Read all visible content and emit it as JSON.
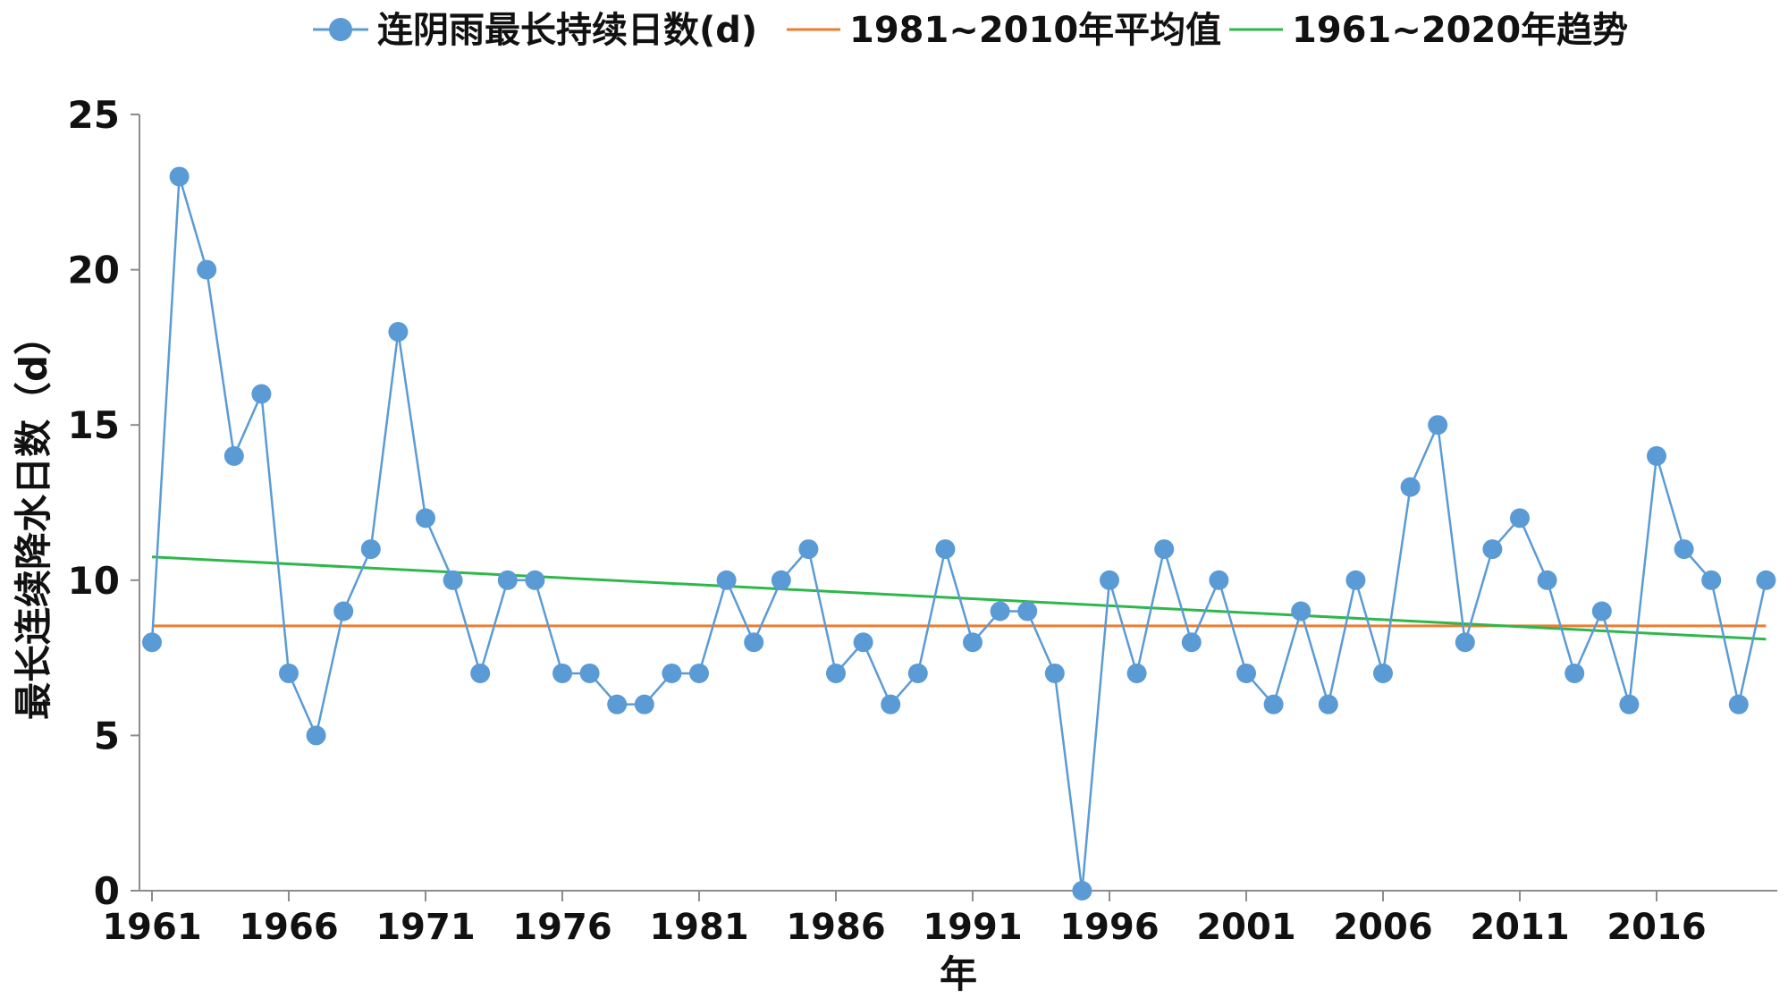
{
  "chart_data": {
    "type": "line",
    "title": "",
    "xlabel": "年",
    "ylabel": "最长连续降水日数（d）",
    "ylim": [
      0,
      25
    ],
    "yticks": [
      "0",
      "5",
      "10",
      "15",
      "20",
      "25"
    ],
    "xtick_labels": [
      "1961",
      "1966",
      "1971",
      "1976",
      "1981",
      "1986",
      "1991",
      "1996",
      "2001",
      "2006",
      "2011",
      "2016"
    ],
    "x": [
      1961,
      1962,
      1963,
      1964,
      1965,
      1966,
      1967,
      1968,
      1969,
      1970,
      1971,
      1972,
      1973,
      1974,
      1975,
      1976,
      1977,
      1978,
      1979,
      1980,
      1981,
      1982,
      1983,
      1984,
      1985,
      1986,
      1987,
      1988,
      1989,
      1990,
      1991,
      1992,
      1993,
      1994,
      1995,
      1996,
      1997,
      1998,
      1999,
      2000,
      2001,
      2002,
      2003,
      2004,
      2005,
      2006,
      2007,
      2008,
      2009,
      2010,
      2011,
      2012,
      2013,
      2014,
      2015,
      2016,
      2017,
      2018,
      2019,
      2020
    ],
    "series": [
      {
        "name": "连阴雨最长持续日数(d)",
        "color": "#5b9bd5",
        "values": [
          8,
          23,
          20,
          14,
          16,
          7,
          5,
          9,
          11,
          18,
          12,
          10,
          7,
          10,
          10,
          7,
          7,
          6,
          6,
          7,
          7,
          10,
          8,
          10,
          11,
          7,
          8,
          6,
          7,
          11,
          8,
          9,
          9,
          7,
          0,
          10,
          7,
          11,
          8,
          10,
          7,
          6,
          9,
          6,
          10,
          7,
          13,
          15,
          8,
          11,
          12,
          10,
          7,
          9,
          6,
          14,
          11,
          10,
          6,
          10
        ]
      },
      {
        "name": "1981~2010年平均值",
        "color": "#ed7d31",
        "value": 8.53
      },
      {
        "name": "1961~2020年趋势",
        "color": "#2eb84b",
        "start": 10.75,
        "end": 8.1
      }
    ],
    "legend_position": "top"
  }
}
